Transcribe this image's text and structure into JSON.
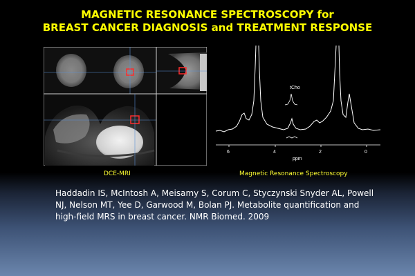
{
  "slide": {
    "title_line1": "MAGNETIC RESONANCE SPECTROSCOPY for",
    "title_line2": "BREAST CANCER DIAGNOSIS and TREATMENT RESPONSE",
    "caption_mri": "DCE-MRI",
    "caption_mrs": "Magnetic Resonance Spectroscopy",
    "citation": "Haddadin IS, McIntosh A, Meisamy S, Corum C, Styczynski Snyder AL, Powell NJ, Nelson MT, Yee D, Garwood M, Bolan PJ. Metabolite quantification and high-field MRS in breast cancer. NMR Biomed. 2009"
  },
  "spectrum": {
    "peak_label": "tCho",
    "axis_label": "ppm",
    "ticks": [
      "6",
      "4",
      "2",
      "0"
    ]
  },
  "colors": {
    "title": "#ffff00",
    "caption": "#ffff33",
    "roi": "#ff2a2a",
    "crosshair": "#5a8fd6"
  }
}
